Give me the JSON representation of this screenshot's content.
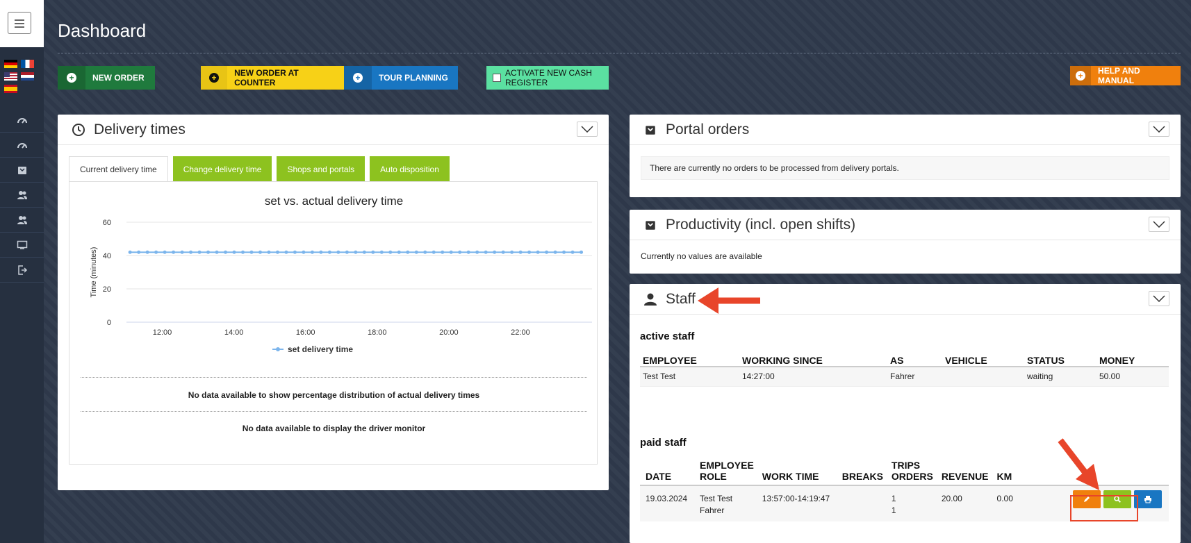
{
  "header": {
    "title": "Dashboard"
  },
  "toolbar": {
    "new_order": "NEW ORDER",
    "new_order_counter": "NEW ORDER AT COUNTER",
    "tour_planning": "TOUR PLANNING",
    "activate_cash": "ACTIVATE NEW CASH REGISTER",
    "help": "HELP AND MANUAL"
  },
  "sidebar": {
    "icons": [
      "dashboard-icon",
      "dashboard-icon",
      "portal-icon",
      "staff-icon",
      "staff-icon",
      "monitor-icon",
      "logout-icon"
    ]
  },
  "delivery": {
    "title": "Delivery times",
    "tabs": [
      "Current delivery time",
      "Change delivery time",
      "Shops and portals",
      "Auto disposition"
    ],
    "msg_distribution": "No data available to show percentage distribution of actual delivery times",
    "msg_driver": "No data available to display the driver monitor"
  },
  "chart_data": {
    "type": "line",
    "title": "set vs. actual delivery time",
    "ylabel": "Time (minutes)",
    "xlabel": "",
    "ylim": [
      0,
      60
    ],
    "yticks": [
      0,
      20,
      40,
      60
    ],
    "xticks": [
      "12:00",
      "14:00",
      "16:00",
      "18:00",
      "20:00",
      "22:00"
    ],
    "x_range_hours": [
      11,
      24
    ],
    "series": [
      {
        "name": "set delivery time",
        "color": "#7cb5ec",
        "value": 42,
        "points": 53
      }
    ],
    "legend": "bottom",
    "grid": true
  },
  "portal": {
    "title": "Portal orders",
    "message": "There are currently no orders to be processed from delivery portals."
  },
  "productivity": {
    "title": "Productivity (incl. open shifts)",
    "message": "Currently no values are available"
  },
  "staff": {
    "title": "Staff",
    "active_title": "active staff",
    "active_headers": [
      "EMPLOYEE",
      "WORKING SINCE",
      "AS",
      "VEHICLE",
      "STATUS",
      "MONEY"
    ],
    "active_rows": [
      {
        "employee": "Test Test",
        "since": "14:27:00",
        "as": "Fahrer",
        "vehicle": "",
        "status": "waiting",
        "money": "50.00"
      }
    ],
    "paid_title": "paid staff",
    "paid_headers": {
      "date": "DATE",
      "employee1": "EMPLOYEE",
      "employee2": "ROLE",
      "work_time": "WORK TIME",
      "breaks": "BREAKS",
      "trips1": "TRIPS",
      "trips2": "ORDERS",
      "revenue": "REVENUE",
      "km": "KM"
    },
    "paid_rows": [
      {
        "date": "19.03.2024",
        "employee": "Test Test",
        "role": "Fahrer",
        "work_time": "13:57:00-14:19:47",
        "breaks": "",
        "trips": "1",
        "orders": "1",
        "revenue": "20.00",
        "km": "0.00"
      }
    ]
  },
  "colors": {
    "accent_green": "#8dc21f",
    "accent_orange": "#f0800d",
    "accent_blue": "#1976c2",
    "annotation_red": "#e8452a"
  }
}
